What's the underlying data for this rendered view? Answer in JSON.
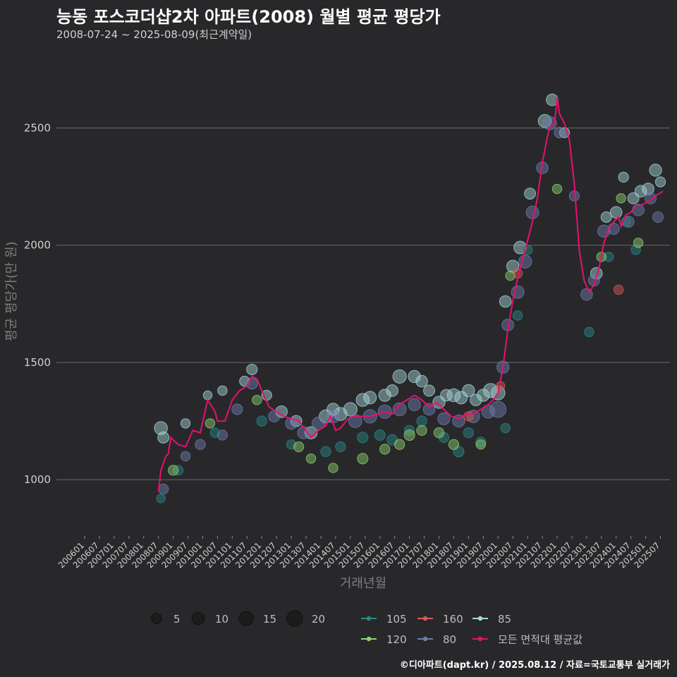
{
  "title": "능동 포스코더샵2차 아파트(2008) 월별 평균 평당가",
  "subtitle": "2008-07-24 ~ 2025-08-09(최근계약일)",
  "source": "©디아파트(dapt.kr) / 2025.08.12 / 자료=국토교통부 실거래가",
  "chart_data": {
    "type": "scatter",
    "title": "능동 포스코더샵2차 아파트(2008) 월별 평균 평당가",
    "xlabel": "거래년월",
    "ylabel": "평균 평당가(만 원)",
    "ylim": [
      760,
      2760
    ],
    "yticks": [
      1000,
      1500,
      2000,
      2500
    ],
    "xlim": [
      "2006-01",
      "2025-08"
    ],
    "x_tick_labels": [
      "200601",
      "200607",
      "200701",
      "200707",
      "200801",
      "200807",
      "200901",
      "200907",
      "201001",
      "201007",
      "201101",
      "201107",
      "201201",
      "201207",
      "201301",
      "201307",
      "201401",
      "201407",
      "201501",
      "201507",
      "201601",
      "201607",
      "201701",
      "201707",
      "201801",
      "201807",
      "201901",
      "201907",
      "202001",
      "202007",
      "202101",
      "202107",
      "202201",
      "202207",
      "202301",
      "202307",
      "202401",
      "202407",
      "202501",
      "202507"
    ],
    "size_legend": {
      "title": "",
      "values": [
        5,
        10,
        15,
        20
      ]
    },
    "colors": {
      "105": "#2a8a8a",
      "120": "#8fd46e",
      "160": "#d95a55",
      "80": "#6f7eb0",
      "85": "#a8d8dc",
      "avg": "#e8106f"
    },
    "series_legend": [
      {
        "key": "105",
        "label": "105"
      },
      {
        "key": "160",
        "label": "160"
      },
      {
        "key": "85",
        "label": "85"
      },
      {
        "key": "120",
        "label": "120"
      },
      {
        "key": "80",
        "label": "80"
      },
      {
        "key": "avg",
        "label": "모든 면적대 평균값"
      }
    ],
    "average_line": {
      "name": "모든 면적대 평균값",
      "points": [
        [
          "2008-07",
          950
        ],
        [
          "2008-08",
          1040
        ],
        [
          "2008-10",
          1100
        ],
        [
          "2008-11",
          1110
        ],
        [
          "2008-12",
          1180
        ],
        [
          "2009-03",
          1150
        ],
        [
          "2009-06",
          1140
        ],
        [
          "2009-09",
          1210
        ],
        [
          "2009-12",
          1200
        ],
        [
          "2010-03",
          1340
        ],
        [
          "2010-06",
          1290
        ],
        [
          "2010-07",
          1250
        ],
        [
          "2010-10",
          1250
        ],
        [
          "2011-01",
          1340
        ],
        [
          "2011-04",
          1380
        ],
        [
          "2011-07",
          1400
        ],
        [
          "2011-09",
          1440
        ],
        [
          "2011-11",
          1430
        ],
        [
          "2012-01",
          1380
        ],
        [
          "2012-04",
          1310
        ],
        [
          "2012-07",
          1290
        ],
        [
          "2012-10",
          1270
        ],
        [
          "2013-01",
          1260
        ],
        [
          "2013-04",
          1250
        ],
        [
          "2013-07",
          1210
        ],
        [
          "2013-09",
          1180
        ],
        [
          "2013-12",
          1210
        ],
        [
          "2014-03",
          1230
        ],
        [
          "2014-05",
          1270
        ],
        [
          "2014-07",
          1210
        ],
        [
          "2014-09",
          1220
        ],
        [
          "2014-12",
          1260
        ],
        [
          "2015-03",
          1270
        ],
        [
          "2015-06",
          1270
        ],
        [
          "2015-09",
          1270
        ],
        [
          "2015-12",
          1280
        ],
        [
          "2016-03",
          1290
        ],
        [
          "2016-06",
          1280
        ],
        [
          "2016-09",
          1320
        ],
        [
          "2016-12",
          1340
        ],
        [
          "2017-03",
          1360
        ],
        [
          "2017-06",
          1340
        ],
        [
          "2017-09",
          1310
        ],
        [
          "2017-12",
          1330
        ],
        [
          "2018-03",
          1300
        ],
        [
          "2018-06",
          1270
        ],
        [
          "2018-09",
          1260
        ],
        [
          "2018-12",
          1280
        ],
        [
          "2019-03",
          1280
        ],
        [
          "2019-06",
          1300
        ],
        [
          "2019-09",
          1320
        ],
        [
          "2019-11",
          1340
        ],
        [
          "2020-01",
          1370
        ],
        [
          "2020-03",
          1480
        ],
        [
          "2020-05",
          1640
        ],
        [
          "2020-07",
          1760
        ],
        [
          "2020-09",
          1860
        ],
        [
          "2020-11",
          1940
        ],
        [
          "2021-01",
          2020
        ],
        [
          "2021-03",
          2100
        ],
        [
          "2021-05",
          2200
        ],
        [
          "2021-07",
          2350
        ],
        [
          "2021-09",
          2460
        ],
        [
          "2021-10",
          2500
        ],
        [
          "2021-12",
          2520
        ],
        [
          "2022-01",
          2630
        ],
        [
          "2022-02",
          2560
        ],
        [
          "2022-04",
          2520
        ],
        [
          "2022-06",
          2450
        ],
        [
          "2022-08",
          2260
        ],
        [
          "2022-10",
          1980
        ],
        [
          "2022-12",
          1850
        ],
        [
          "2023-02",
          1800
        ],
        [
          "2023-04",
          1830
        ],
        [
          "2023-06",
          1900
        ],
        [
          "2023-08",
          2010
        ],
        [
          "2023-10",
          2070
        ],
        [
          "2023-12",
          2100
        ],
        [
          "2024-02",
          2120
        ],
        [
          "2024-03",
          2080
        ],
        [
          "2024-05",
          2130
        ],
        [
          "2024-07",
          2140
        ],
        [
          "2024-09",
          2170
        ],
        [
          "2024-11",
          2170
        ],
        [
          "2025-01",
          2180
        ],
        [
          "2025-03",
          2190
        ],
        [
          "2025-05",
          2210
        ],
        [
          "2025-08",
          2230
        ]
      ]
    },
    "series": [
      {
        "name": "85",
        "color": "#a8d8dc",
        "points": [
          [
            "2008-08",
            1220,
            12
          ],
          [
            "2008-09",
            1180,
            8
          ],
          [
            "2009-06",
            1240,
            5
          ],
          [
            "2010-03",
            1360,
            4
          ],
          [
            "2010-09",
            1380,
            5
          ],
          [
            "2011-06",
            1420,
            6
          ],
          [
            "2011-09",
            1470,
            7
          ],
          [
            "2012-03",
            1360,
            6
          ],
          [
            "2012-09",
            1290,
            9
          ],
          [
            "2013-03",
            1250,
            8
          ],
          [
            "2013-09",
            1200,
            10
          ],
          [
            "2014-03",
            1270,
            12
          ],
          [
            "2014-06",
            1300,
            10
          ],
          [
            "2014-09",
            1280,
            12
          ],
          [
            "2015-01",
            1300,
            13
          ],
          [
            "2015-06",
            1340,
            12
          ],
          [
            "2015-09",
            1350,
            11
          ],
          [
            "2016-03",
            1360,
            10
          ],
          [
            "2016-06",
            1380,
            9
          ],
          [
            "2016-09",
            1440,
            13
          ],
          [
            "2017-03",
            1440,
            10
          ],
          [
            "2017-06",
            1420,
            9
          ],
          [
            "2017-09",
            1380,
            8
          ],
          [
            "2018-01",
            1330,
            10
          ],
          [
            "2018-04",
            1360,
            9
          ],
          [
            "2018-07",
            1360,
            12
          ],
          [
            "2018-10",
            1350,
            11
          ],
          [
            "2019-01",
            1380,
            10
          ],
          [
            "2019-04",
            1340,
            9
          ],
          [
            "2019-07",
            1360,
            10
          ],
          [
            "2019-10",
            1380,
            15
          ],
          [
            "2020-01",
            1370,
            14
          ],
          [
            "2020-04",
            1760,
            9
          ],
          [
            "2020-07",
            1910,
            10
          ],
          [
            "2020-10",
            1990,
            11
          ],
          [
            "2021-02",
            2220,
            8
          ],
          [
            "2021-08",
            2530,
            12
          ],
          [
            "2021-11",
            2620,
            9
          ],
          [
            "2022-04",
            2480,
            6
          ],
          [
            "2023-05",
            1880,
            9
          ],
          [
            "2023-09",
            2120,
            7
          ],
          [
            "2024-01",
            2140,
            9
          ],
          [
            "2024-04",
            2290,
            6
          ],
          [
            "2024-08",
            2200,
            8
          ],
          [
            "2024-11",
            2230,
            9
          ],
          [
            "2025-02",
            2240,
            9
          ],
          [
            "2025-05",
            2320,
            10
          ],
          [
            "2025-07",
            2270,
            6
          ]
        ]
      },
      {
        "name": "80",
        "color": "#6f7eb0",
        "points": [
          [
            "2008-09",
            960,
            6
          ],
          [
            "2009-06",
            1100,
            5
          ],
          [
            "2009-12",
            1150,
            6
          ],
          [
            "2010-09",
            1190,
            6
          ],
          [
            "2011-03",
            1300,
            7
          ],
          [
            "2011-09",
            1410,
            8
          ],
          [
            "2012-06",
            1270,
            8
          ],
          [
            "2013-01",
            1240,
            9
          ],
          [
            "2013-06",
            1200,
            10
          ],
          [
            "2013-12",
            1240,
            11
          ],
          [
            "2014-06",
            1270,
            12
          ],
          [
            "2015-03",
            1250,
            12
          ],
          [
            "2015-09",
            1270,
            13
          ],
          [
            "2016-03",
            1290,
            13
          ],
          [
            "2016-09",
            1300,
            12
          ],
          [
            "2017-03",
            1320,
            10
          ],
          [
            "2017-09",
            1300,
            9
          ],
          [
            "2018-03",
            1260,
            10
          ],
          [
            "2018-09",
            1250,
            10
          ],
          [
            "2019-03",
            1270,
            11
          ],
          [
            "2019-09",
            1290,
            12
          ],
          [
            "2020-01",
            1300,
            20
          ],
          [
            "2020-03",
            1480,
            10
          ],
          [
            "2020-05",
            1660,
            9
          ],
          [
            "2020-09",
            1800,
            11
          ],
          [
            "2020-12",
            1930,
            12
          ],
          [
            "2021-03",
            2140,
            11
          ],
          [
            "2021-07",
            2330,
            9
          ],
          [
            "2021-10",
            2520,
            13
          ],
          [
            "2022-02",
            2480,
            7
          ],
          [
            "2022-08",
            2210,
            6
          ],
          [
            "2023-01",
            1790,
            9
          ],
          [
            "2023-04",
            1850,
            8
          ],
          [
            "2023-08",
            2060,
            10
          ],
          [
            "2023-12",
            2070,
            8
          ],
          [
            "2024-06",
            2100,
            8
          ],
          [
            "2024-10",
            2150,
            9
          ],
          [
            "2025-03",
            2200,
            8
          ],
          [
            "2025-06",
            2120,
            7
          ]
        ]
      },
      {
        "name": "105",
        "color": "#2a8a8a",
        "points": [
          [
            "2008-08",
            920,
            4
          ],
          [
            "2009-03",
            1040,
            6
          ],
          [
            "2010-06",
            1200,
            5
          ],
          [
            "2012-01",
            1250,
            6
          ],
          [
            "2013-01",
            1150,
            5
          ],
          [
            "2014-03",
            1120,
            6
          ],
          [
            "2014-09",
            1140,
            6
          ],
          [
            "2015-06",
            1180,
            7
          ],
          [
            "2016-01",
            1190,
            7
          ],
          [
            "2016-06",
            1170,
            7
          ],
          [
            "2017-01",
            1210,
            6
          ],
          [
            "2017-06",
            1250,
            6
          ],
          [
            "2018-03",
            1180,
            6
          ],
          [
            "2018-09",
            1120,
            7
          ],
          [
            "2019-01",
            1200,
            6
          ],
          [
            "2019-06",
            1160,
            6
          ],
          [
            "2020-04",
            1220,
            5
          ],
          [
            "2020-09",
            1700,
            5
          ],
          [
            "2021-01",
            1980,
            5
          ],
          [
            "2023-02",
            1630,
            5
          ],
          [
            "2023-10",
            1950,
            5
          ],
          [
            "2024-05",
            2100,
            5
          ],
          [
            "2024-09",
            1980,
            5
          ]
        ]
      },
      {
        "name": "120",
        "color": "#8fd46e",
        "points": [
          [
            "2009-01",
            1040,
            6
          ],
          [
            "2010-04",
            1240,
            5
          ],
          [
            "2011-11",
            1340,
            5
          ],
          [
            "2013-04",
            1140,
            6
          ],
          [
            "2013-09",
            1090,
            5
          ],
          [
            "2014-06",
            1050,
            5
          ],
          [
            "2015-06",
            1090,
            7
          ],
          [
            "2016-03",
            1130,
            6
          ],
          [
            "2016-09",
            1150,
            6
          ],
          [
            "2017-01",
            1190,
            7
          ],
          [
            "2017-06",
            1210,
            6
          ],
          [
            "2018-01",
            1200,
            6
          ],
          [
            "2018-07",
            1150,
            6
          ],
          [
            "2019-06",
            1150,
            5
          ],
          [
            "2020-06",
            1870,
            5
          ],
          [
            "2022-01",
            2240,
            5
          ],
          [
            "2023-07",
            1950,
            5
          ],
          [
            "2024-03",
            2200,
            5
          ],
          [
            "2024-10",
            2010,
            5
          ]
        ]
      },
      {
        "name": "160",
        "color": "#d95a55",
        "points": [
          [
            "2019-01",
            1270,
            5
          ],
          [
            "2020-02",
            1400,
            4
          ],
          [
            "2020-09",
            1880,
            5
          ],
          [
            "2024-02",
            1810,
            5
          ]
        ]
      }
    ]
  }
}
